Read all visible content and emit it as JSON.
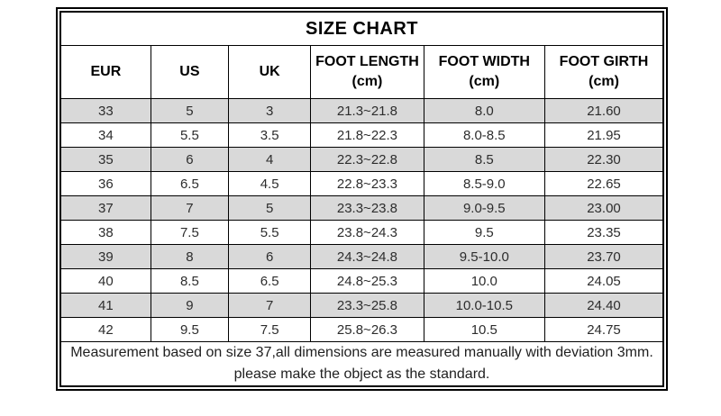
{
  "title": "SIZE CHART",
  "table": {
    "columns": [
      {
        "key": "eur",
        "label": "EUR"
      },
      {
        "key": "us",
        "label": "US"
      },
      {
        "key": "uk",
        "label": "UK"
      },
      {
        "key": "foot-length",
        "label": "FOOT LENGTH\n(cm)"
      },
      {
        "key": "foot-width",
        "label": "FOOT WIDTH\n(cm)"
      },
      {
        "key": "foot-girth",
        "label": "FOOT GIRTH\n(cm)"
      }
    ],
    "rows": [
      [
        "33",
        "5",
        "3",
        "21.3~21.8",
        "8.0",
        "21.60"
      ],
      [
        "34",
        "5.5",
        "3.5",
        "21.8~22.3",
        "8.0-8.5",
        "21.95"
      ],
      [
        "35",
        "6",
        "4",
        "22.3~22.8",
        "8.5",
        "22.30"
      ],
      [
        "36",
        "6.5",
        "4.5",
        "22.8~23.3",
        "8.5-9.0",
        "22.65"
      ],
      [
        "37",
        "7",
        "5",
        "23.3~23.8",
        "9.0-9.5",
        "23.00"
      ],
      [
        "38",
        "7.5",
        "5.5",
        "23.8~24.3",
        "9.5",
        "23.35"
      ],
      [
        "39",
        "8",
        "6",
        "24.3~24.8",
        "9.5-10.0",
        "23.70"
      ],
      [
        "40",
        "8.5",
        "6.5",
        "24.8~25.3",
        "10.0",
        "24.05"
      ],
      [
        "41",
        "9",
        "7",
        "23.3~25.8",
        "10.0-10.5",
        "24.40"
      ],
      [
        "42",
        "9.5",
        "7.5",
        "25.8~26.3",
        "10.5",
        "24.75"
      ]
    ],
    "footnote": "Measurement based on size 37,all dimensions are measured manually with deviation 3mm. please make the object as the standard."
  },
  "colors": {
    "row_alt_bg": "#d9d9d9",
    "border": "#000000",
    "text": "#2d2d2d",
    "background": "#ffffff"
  }
}
